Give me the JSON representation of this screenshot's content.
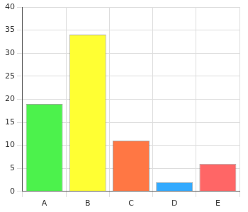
{
  "chart_data": {
    "type": "bar",
    "categories": [
      "A",
      "B",
      "C",
      "D",
      "E"
    ],
    "values": [
      19,
      34,
      11,
      2,
      6
    ],
    "colors": [
      "#4cf24c",
      "#ffff33",
      "#ff7744",
      "#33aaff",
      "#ff6666"
    ],
    "ylim": [
      0,
      40
    ],
    "yticks": [
      0,
      5,
      10,
      15,
      20,
      25,
      30,
      35,
      40
    ],
    "grid": true
  }
}
